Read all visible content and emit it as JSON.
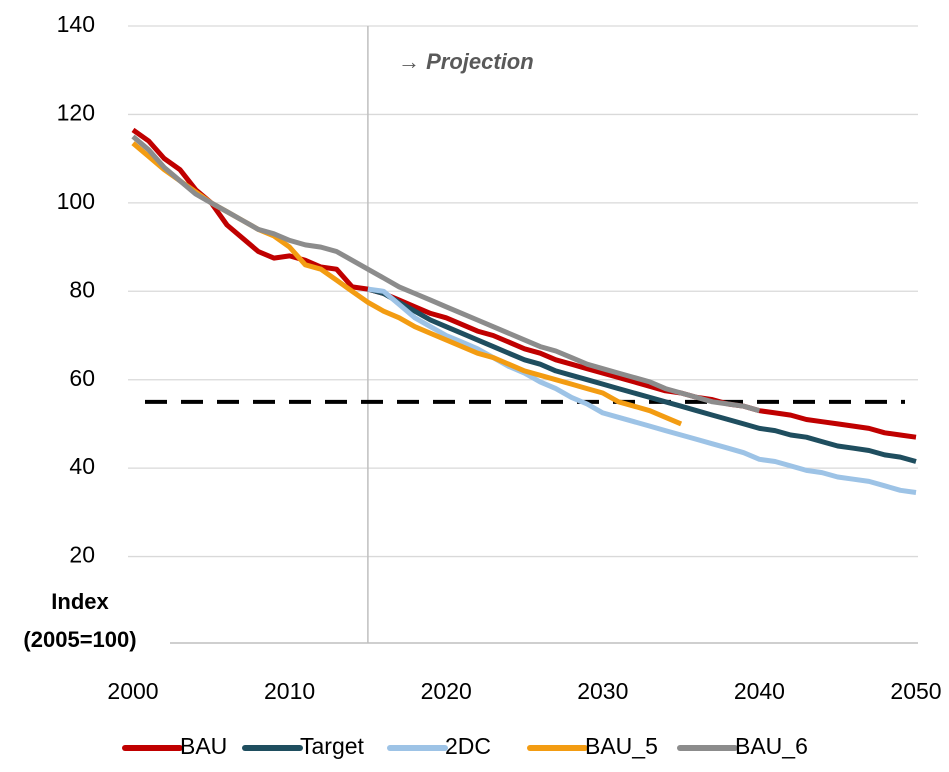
{
  "chart_data": {
    "type": "line",
    "ylabel": [
      "Index",
      "(2005=100)"
    ],
    "annotation": "→ Projection",
    "projection_start": 2015,
    "reference_line": 55,
    "xlim": [
      2000,
      2050
    ],
    "xticks": [
      2000,
      2010,
      2020,
      2030,
      2040,
      2050
    ],
    "ylim": [
      0,
      140
    ],
    "yticks": [
      20,
      40,
      60,
      80,
      100,
      120,
      140
    ],
    "grid": true,
    "legend": "bottom",
    "x": [
      2000,
      2001,
      2002,
      2003,
      2004,
      2005,
      2006,
      2007,
      2008,
      2009,
      2010,
      2011,
      2012,
      2013,
      2014,
      2015,
      2016,
      2017,
      2018,
      2019,
      2020,
      2021,
      2022,
      2023,
      2024,
      2025,
      2026,
      2027,
      2028,
      2029,
      2030,
      2031,
      2032,
      2033,
      2034,
      2035,
      2036,
      2037,
      2038,
      2039,
      2040,
      2041,
      2042,
      2043,
      2044,
      2045,
      2046,
      2047,
      2048,
      2049,
      2050
    ],
    "series": [
      {
        "name": "BAU",
        "color": "#c00000",
        "values": [
          116.5,
          114,
          110,
          107.5,
          103,
          100,
          95,
          92,
          89,
          87.5,
          88,
          87,
          85.5,
          85,
          81,
          80.5,
          79.5,
          78,
          76.5,
          75,
          74,
          72.5,
          71,
          70,
          68.5,
          67,
          66,
          64.5,
          63.5,
          62.5,
          61.5,
          60.5,
          59.5,
          58.5,
          57.5,
          57,
          56,
          55.5,
          54.5,
          54,
          53,
          52.5,
          52,
          51,
          50.5,
          50,
          49.5,
          49,
          48,
          47.5,
          47
        ]
      },
      {
        "name": "Target",
        "color": "#1f4e5f",
        "values": [
          null,
          null,
          null,
          null,
          null,
          null,
          null,
          null,
          null,
          null,
          null,
          null,
          null,
          null,
          null,
          80.5,
          79.5,
          77.5,
          75.5,
          73.5,
          72,
          70.5,
          69,
          67.5,
          66,
          64.5,
          63.5,
          62,
          61,
          60,
          59,
          58,
          57,
          56,
          55,
          54,
          53,
          52,
          51,
          50,
          49,
          48.5,
          47.5,
          47,
          46,
          45,
          44.5,
          44,
          43,
          42.5,
          41.5
        ]
      },
      {
        "name": "2DC",
        "color": "#9dc3e6",
        "values": [
          null,
          null,
          null,
          null,
          null,
          null,
          null,
          null,
          null,
          null,
          null,
          null,
          null,
          null,
          null,
          80.5,
          80,
          77,
          74,
          72,
          70,
          68.5,
          67,
          65,
          63,
          61.5,
          59.5,
          58,
          56,
          54.5,
          52.5,
          51.5,
          50.5,
          49.5,
          48.5,
          47.5,
          46.5,
          45.5,
          44.5,
          43.5,
          42,
          41.5,
          40.5,
          39.5,
          39,
          38,
          37.5,
          37,
          36,
          35,
          34.5
        ]
      },
      {
        "name": "BAU_5",
        "color": "#f39c12",
        "values": [
          113.5,
          110.5,
          107.5,
          105,
          102.5,
          100,
          98,
          96,
          94,
          92.5,
          90,
          86,
          85,
          82.5,
          80,
          77.5,
          75.5,
          74,
          72,
          70.5,
          69,
          67.5,
          66,
          65,
          63.5,
          62,
          61,
          60,
          59,
          58,
          57,
          55,
          54,
          53,
          51.5,
          50,
          null,
          null,
          null,
          null,
          null,
          null,
          null,
          null,
          null,
          null,
          null,
          null,
          null,
          null,
          null
        ]
      },
      {
        "name": "BAU_6",
        "color": "#8c8c8c",
        "values": [
          115,
          112,
          108,
          105,
          102,
          100,
          98,
          96,
          94,
          93,
          91.5,
          90.5,
          90,
          89,
          87,
          85,
          83,
          81,
          79.5,
          78,
          76.5,
          75,
          73.5,
          72,
          70.5,
          69,
          67.5,
          66.5,
          65,
          63.5,
          62.5,
          61.5,
          60.5,
          59.5,
          58,
          57,
          56,
          55,
          54.5,
          54,
          53,
          null,
          null,
          null,
          null,
          null,
          null,
          null,
          null,
          null,
          null
        ]
      }
    ]
  }
}
